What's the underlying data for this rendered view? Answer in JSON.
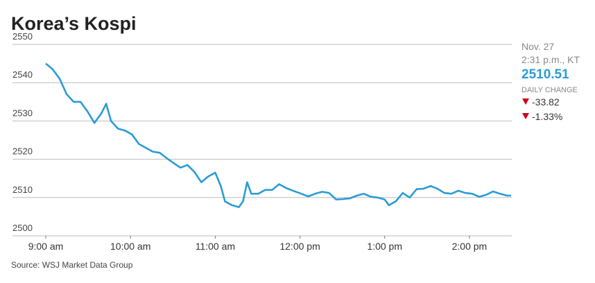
{
  "chart_data": {
    "type": "line",
    "title": "Korea’s Kospi",
    "source": "Source: WSJ Market Data Group",
    "x": [
      9.0,
      9.082,
      9.164,
      9.246,
      9.328,
      9.41,
      9.492,
      9.574,
      9.656,
      9.713,
      9.77,
      9.852,
      9.934,
      10.016,
      10.098,
      10.18,
      10.262,
      10.344,
      10.426,
      10.508,
      10.59,
      10.672,
      10.754,
      10.836,
      10.918,
      11.0,
      11.066,
      11.115,
      11.197,
      11.279,
      11.328,
      11.377,
      11.426,
      11.508,
      11.59,
      11.672,
      11.754,
      11.836,
      11.918,
      12.016,
      12.098,
      12.18,
      12.262,
      12.344,
      12.426,
      12.508,
      12.59,
      12.672,
      12.754,
      12.836,
      12.918,
      13.0,
      13.049,
      13.131,
      13.213,
      13.295,
      13.377,
      13.459,
      13.541,
      13.623,
      13.705,
      13.787,
      13.869,
      13.951,
      14.033,
      14.115,
      14.197,
      14.279,
      14.361,
      14.443,
      14.492
    ],
    "series": [
      {
        "name": "Kospi",
        "color": "#2a9bd5",
        "values": [
          2545,
          2543.5,
          2541,
          2537,
          2535,
          2535,
          2532.5,
          2529.5,
          2532,
          2534.5,
          2530,
          2528,
          2527.5,
          2526.5,
          2524,
          2523,
          2522,
          2521.7,
          2520.3,
          2519,
          2517.8,
          2518.5,
          2516.7,
          2514,
          2515.5,
          2516.5,
          2513,
          2509,
          2508,
          2507.5,
          2509,
          2514,
          2511,
          2511,
          2512,
          2512,
          2513.5,
          2512.5,
          2511.8,
          2511,
          2510.3,
          2511,
          2511.5,
          2511.2,
          2509.5,
          2509.6,
          2509.8,
          2510.5,
          2511,
          2510.2,
          2510,
          2509.5,
          2508,
          2509,
          2511.2,
          2510,
          2512.2,
          2512.3,
          2513,
          2512.3,
          2511.2,
          2511,
          2511.8,
          2511.2,
          2511,
          2510.2,
          2510.7,
          2511.6,
          2511,
          2510.5,
          2510.5
        ]
      }
    ],
    "xlim": [
      8.607,
      14.5
    ],
    "xticks": [
      {
        "value": 9,
        "label": "9:00 am"
      },
      {
        "value": 10,
        "label": "10:00 am"
      },
      {
        "value": 11,
        "label": "11:00 am"
      },
      {
        "value": 12,
        "label": "12:00 pm"
      },
      {
        "value": 13,
        "label": "1:00 pm"
      },
      {
        "value": 14,
        "label": "2:00 pm"
      }
    ],
    "ylim": [
      2500,
      2550
    ],
    "yticks": [
      2500,
      2510,
      2520,
      2530,
      2540,
      2550
    ],
    "grid": true,
    "annotations": {
      "date": "Nov. 27",
      "time": "2:31 p.m., KT",
      "last": "2510.51",
      "change_label": "DAILY CHANGE",
      "change": "-33.82",
      "change_pct": "-1.33%"
    }
  }
}
